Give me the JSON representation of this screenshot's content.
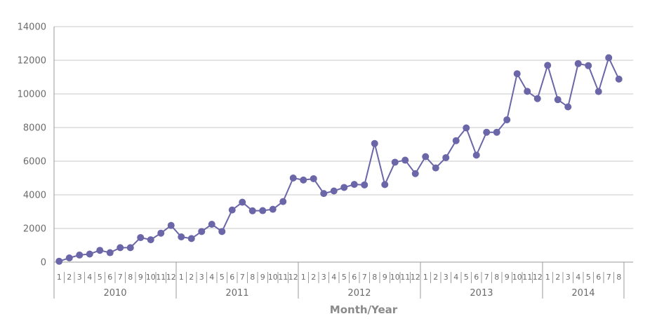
{
  "chart_data": {
    "type": "line",
    "title": "",
    "xlabel": "Month/Year",
    "ylabel": "",
    "ylim": [
      0,
      14000
    ],
    "yticks": [
      0,
      2000,
      4000,
      6000,
      8000,
      10000,
      12000,
      14000
    ],
    "grid": true,
    "legend": "none",
    "color": "#6b66a8",
    "years": [
      {
        "label": "2010",
        "months": 12
      },
      {
        "label": "2011",
        "months": 12
      },
      {
        "label": "2012",
        "months": 12
      },
      {
        "label": "2013",
        "months": 12
      },
      {
        "label": "2014",
        "months": 8
      }
    ],
    "values": [
      50,
      250,
      420,
      480,
      700,
      560,
      860,
      860,
      1460,
      1330,
      1720,
      2180,
      1500,
      1400,
      1820,
      2250,
      1820,
      3100,
      3560,
      3050,
      3060,
      3140,
      3600,
      5000,
      4880,
      4960,
      4080,
      4230,
      4440,
      4620,
      4590,
      7050,
      4610,
      5940,
      6060,
      5260,
      6270,
      5600,
      6210,
      7220,
      7980,
      6360,
      7720,
      7720,
      8460,
      11200,
      10150,
      9720,
      11700,
      9660,
      9230,
      11800,
      11680,
      10140,
      12150,
      10880
    ]
  }
}
